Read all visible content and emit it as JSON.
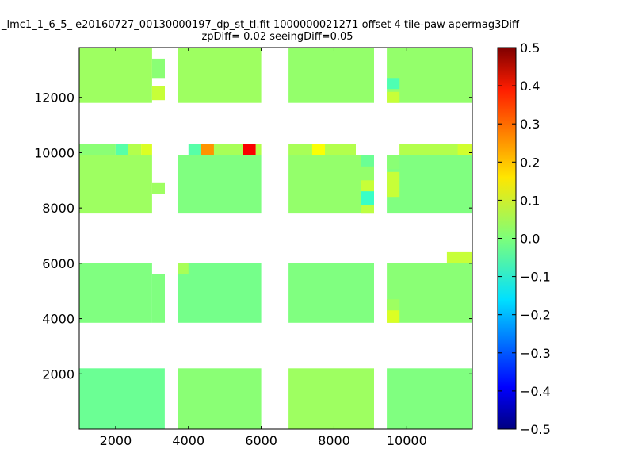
{
  "chart_data": {
    "type": "heatmap",
    "title_line1": "_lmc1_1_6_5_ e20160727_00130000197_dp_st_tl.fit 1000000021271 offset 4 tile-paw apermag3Diff",
    "title_line2": "zpDiff= 0.02 seeingDiff=0.05",
    "xlim": [
      1000,
      11800
    ],
    "ylim": [
      0,
      13800
    ],
    "x_ticks": [
      "2000",
      "4000",
      "6000",
      "8000",
      "10000"
    ],
    "y_ticks": [
      "2000",
      "4000",
      "6000",
      "8000",
      "10000",
      "12000"
    ],
    "colorbar": {
      "vmin": -0.5,
      "vmax": 0.5,
      "colormap": "jet",
      "ticks": [
        "0.5",
        "0.4",
        "0.3",
        "0.2",
        "0.1",
        "0.0",
        "−0.1",
        "−0.2",
        "−0.3",
        "−0.4",
        "−0.5"
      ]
    },
    "detector_blocks": [
      {
        "x": [
          1000,
          3000
        ],
        "y": [
          11800,
          13800
        ],
        "value": 0.03
      },
      {
        "x": [
          3000,
          3350
        ],
        "y": [
          12700,
          13400
        ],
        "value": 0.01
      },
      {
        "x": [
          3000,
          3350
        ],
        "y": [
          11900,
          12400
        ],
        "value": 0.07
      },
      {
        "x": [
          3700,
          6000
        ],
        "y": [
          11800,
          13800
        ],
        "value": 0.03
      },
      {
        "x": [
          6750,
          9100
        ],
        "y": [
          11800,
          13800
        ],
        "value": 0.02
      },
      {
        "x": [
          9450,
          11800
        ],
        "y": [
          11800,
          13800
        ],
        "value": 0.02
      },
      {
        "x": [
          9450,
          9800
        ],
        "y": [
          12300,
          12700
        ],
        "value": -0.05
      },
      {
        "x": [
          9450,
          9800
        ],
        "y": [
          11800,
          12200
        ],
        "value": 0.07
      },
      {
        "x": [
          1000,
          3000
        ],
        "y": [
          7800,
          9900
        ],
        "value": 0.03
      },
      {
        "x": [
          3000,
          3350
        ],
        "y": [
          8500,
          8900
        ],
        "value": 0.03
      },
      {
        "x": [
          3700,
          6000
        ],
        "y": [
          7800,
          9900
        ],
        "value": 0.0
      },
      {
        "x": [
          6750,
          9100
        ],
        "y": [
          7800,
          9900
        ],
        "value": 0.02
      },
      {
        "x": [
          8750,
          9100
        ],
        "y": [
          9500,
          9900
        ],
        "value": -0.02
      },
      {
        "x": [
          8750,
          9100
        ],
        "y": [
          8600,
          9000
        ],
        "value": 0.07
      },
      {
        "x": [
          8750,
          9100
        ],
        "y": [
          8100,
          8600
        ],
        "value": -0.07
      },
      {
        "x": [
          8750,
          9100
        ],
        "y": [
          7800,
          8100
        ],
        "value": 0.06
      },
      {
        "x": [
          9450,
          11800
        ],
        "y": [
          7800,
          9900
        ],
        "value": 0.0
      },
      {
        "x": [
          9450,
          9800
        ],
        "y": [
          9400,
          9900
        ],
        "value": 0.01
      },
      {
        "x": [
          9450,
          9800
        ],
        "y": [
          8400,
          9300
        ],
        "value": 0.07
      },
      {
        "x": [
          1000,
          2000
        ],
        "y": [
          9900,
          10300
        ],
        "value": 0.01
      },
      {
        "x": [
          2000,
          2350
        ],
        "y": [
          9900,
          10300
        ],
        "value": -0.04
      },
      {
        "x": [
          2350,
          2700
        ],
        "y": [
          9900,
          10300
        ],
        "value": 0.05
      },
      {
        "x": [
          2700,
          3000
        ],
        "y": [
          9900,
          10300
        ],
        "value": 0.09
      },
      {
        "x": [
          4000,
          4350
        ],
        "y": [
          9900,
          10300
        ],
        "value": -0.04
      },
      {
        "x": [
          4350,
          4700
        ],
        "y": [
          9900,
          10300
        ],
        "value": 0.23
      },
      {
        "x": [
          4700,
          5500
        ],
        "y": [
          9900,
          10300
        ],
        "value": 0.04
      },
      {
        "x": [
          5500,
          5850
        ],
        "y": [
          9900,
          10300
        ],
        "value": 0.38
      },
      {
        "x": [
          5850,
          6000
        ],
        "y": [
          9900,
          10300
        ],
        "value": 0.05
      },
      {
        "x": [
          6750,
          7400
        ],
        "y": [
          9900,
          10300
        ],
        "value": 0.04
      },
      {
        "x": [
          7400,
          7750
        ],
        "y": [
          9900,
          10300
        ],
        "value": 0.12
      },
      {
        "x": [
          7750,
          8600
        ],
        "y": [
          9900,
          10300
        ],
        "value": 0.05
      },
      {
        "x": [
          9800,
          11800
        ],
        "y": [
          9900,
          10300
        ],
        "value": 0.05
      },
      {
        "x": [
          11400,
          11800
        ],
        "y": [
          9900,
          10300
        ],
        "value": 0.08
      },
      {
        "x": [
          1000,
          3000
        ],
        "y": [
          3850,
          6000
        ],
        "value": 0.0
      },
      {
        "x": [
          3000,
          3350
        ],
        "y": [
          3850,
          5600
        ],
        "value": 0.0
      },
      {
        "x": [
          3700,
          6000
        ],
        "y": [
          3850,
          6000
        ],
        "value": -0.01
      },
      {
        "x": [
          3700,
          4000
        ],
        "y": [
          5600,
          6000
        ],
        "value": 0.04
      },
      {
        "x": [
          6750,
          9100
        ],
        "y": [
          3850,
          6000
        ],
        "value": 0.0
      },
      {
        "x": [
          9450,
          11800
        ],
        "y": [
          3850,
          6000
        ],
        "value": 0.01
      },
      {
        "x": [
          11100,
          11800
        ],
        "y": [
          6000,
          6400
        ],
        "value": 0.07
      },
      {
        "x": [
          9450,
          9800
        ],
        "y": [
          3850,
          4300
        ],
        "value": 0.09
      },
      {
        "x": [
          9450,
          9800
        ],
        "y": [
          4300,
          4700
        ],
        "value": 0.03
      },
      {
        "x": [
          1000,
          3350
        ],
        "y": [
          0,
          2200
        ],
        "value": -0.02
      },
      {
        "x": [
          3700,
          6000
        ],
        "y": [
          0,
          2200
        ],
        "value": 0.01
      },
      {
        "x": [
          6750,
          9100
        ],
        "y": [
          0,
          2200
        ],
        "value": 0.03
      },
      {
        "x": [
          9450,
          11800
        ],
        "y": [
          0,
          2200
        ],
        "value": 0.0
      }
    ]
  }
}
